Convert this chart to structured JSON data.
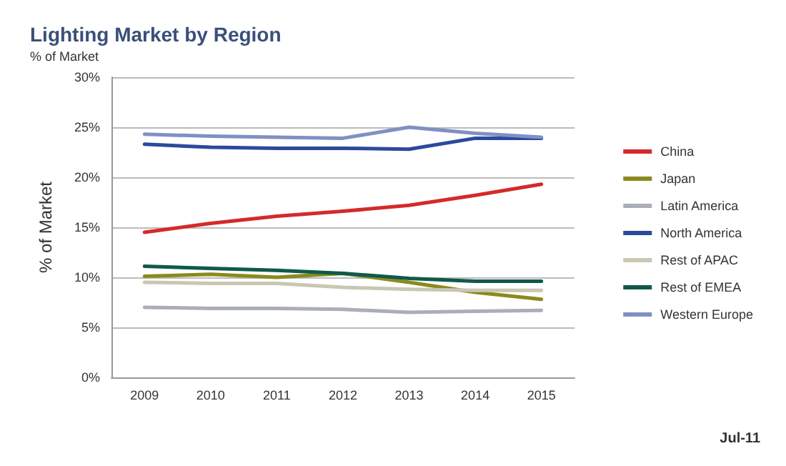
{
  "chart_data": {
    "type": "line",
    "title": "Lighting Market by Region",
    "subtitle": "% of Market",
    "ylabel": "% of Market",
    "annotations": [
      "Jul-11"
    ],
    "categories": [
      "2009",
      "2010",
      "2011",
      "2012",
      "2013",
      "2014",
      "2015"
    ],
    "series": [
      {
        "name": "China",
        "color": "#d42a2a",
        "values": [
          14.5,
          15.4,
          16.1,
          16.6,
          17.2,
          18.2,
          19.3
        ]
      },
      {
        "name": "Japan",
        "color": "#8a8a1e",
        "values": [
          10.1,
          10.3,
          10.0,
          10.4,
          9.5,
          8.5,
          7.8
        ]
      },
      {
        "name": "Latin America",
        "color": "#a9aeb8",
        "values": [
          7.0,
          6.9,
          6.9,
          6.8,
          6.5,
          6.6,
          6.7
        ]
      },
      {
        "name": "North America",
        "color": "#2a4a9c",
        "values": [
          23.3,
          23.0,
          22.9,
          22.9,
          22.8,
          23.9,
          23.9
        ]
      },
      {
        "name": "Rest of APAC",
        "color": "#c9c7b4",
        "values": [
          9.5,
          9.4,
          9.4,
          9.0,
          8.8,
          8.7,
          8.7
        ]
      },
      {
        "name": "Rest of EMEA",
        "color": "#0f5a4a",
        "values": [
          11.1,
          10.9,
          10.7,
          10.4,
          9.9,
          9.6,
          9.6
        ]
      },
      {
        "name": "Western Europe",
        "color": "#8090c4",
        "values": [
          24.3,
          24.1,
          24.0,
          23.9,
          25.0,
          24.4,
          24.0
        ]
      }
    ],
    "ylim": [
      0,
      30
    ],
    "yticks": [
      {
        "value": 0,
        "label": "0%"
      },
      {
        "value": 5,
        "label": "5%"
      },
      {
        "value": 10,
        "label": "10%"
      },
      {
        "value": 15,
        "label": "15%"
      },
      {
        "value": 20,
        "label": "20%"
      },
      {
        "value": 25,
        "label": "25%"
      },
      {
        "value": 30,
        "label": "30%"
      }
    ],
    "grid": "y",
    "legend": "right",
    "marker": "none",
    "line_style": "solid"
  }
}
